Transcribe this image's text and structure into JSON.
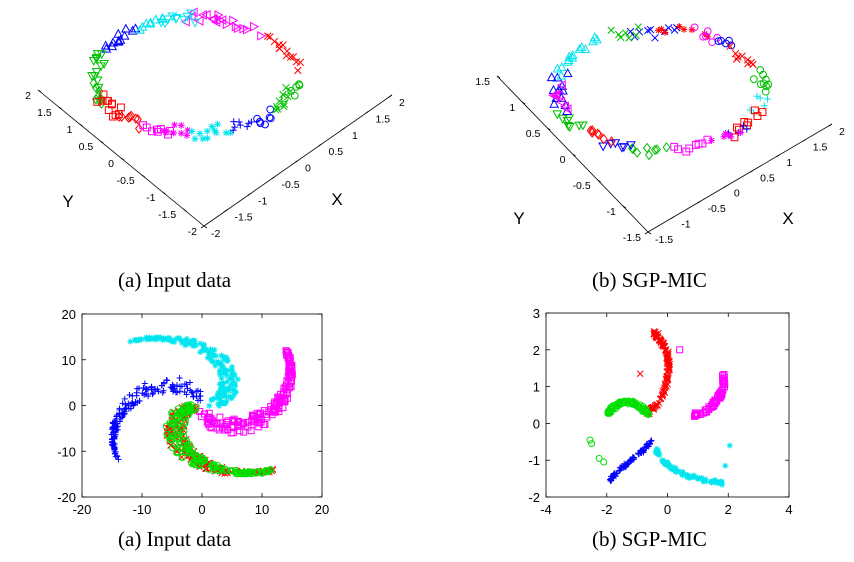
{
  "captions": {
    "top_left": "(a) Input data",
    "top_right": "(b) SGP-MIC",
    "bottom_left": "(a) Input data",
    "bottom_right": "(b) SGP-MIC"
  },
  "chart_data": [
    {
      "id": "ring3d-input",
      "type": "scatter",
      "dimensions": 3,
      "title": "",
      "xlabel": "X",
      "ylabel": "Y",
      "x_ticks": [
        "-2",
        "-1.5",
        "-1",
        "-0.5",
        "0",
        "0.5",
        "1",
        "1.5",
        "2"
      ],
      "y_ticks": [
        "-2",
        "-1.5",
        "-1",
        "-0.5",
        "0",
        "0.5",
        "1",
        "1.5",
        "2"
      ],
      "xlim": [
        -2,
        2
      ],
      "ylim": [
        -2,
        2
      ],
      "grid": false,
      "series": [
        {
          "marker": "triangle-up",
          "color": "#0000ff",
          "start_angle": 125,
          "end_angle": 155,
          "count": 12
        },
        {
          "marker": "triangle-down",
          "color": "#00c000",
          "start_angle": 155,
          "end_angle": 190,
          "count": 12
        },
        {
          "marker": "diamond",
          "color": "#00c000",
          "start_angle": 190,
          "end_angle": 210,
          "count": 8
        },
        {
          "marker": "square",
          "color": "#ff0000",
          "start_angle": 200,
          "end_angle": 225,
          "count": 12
        },
        {
          "marker": "diamond",
          "color": "#ff0000",
          "start_angle": 222,
          "end_angle": 238,
          "count": 8
        },
        {
          "marker": "square",
          "color": "#ff00ff",
          "start_angle": 238,
          "end_angle": 255,
          "count": 8
        },
        {
          "marker": "asterisk",
          "color": "#ff00ff",
          "start_angle": 250,
          "end_angle": 268,
          "count": 9
        },
        {
          "marker": "asterisk",
          "color": "#00e5ee",
          "start_angle": 268,
          "end_angle": 290,
          "count": 12
        },
        {
          "marker": "plus",
          "color": "#0000ff",
          "start_angle": 290,
          "end_angle": 305,
          "count": 8
        },
        {
          "marker": "circle",
          "color": "#0000ff",
          "start_angle": 305,
          "end_angle": 320,
          "count": 7
        },
        {
          "marker": "x",
          "color": "#00c000",
          "start_angle": 320,
          "end_angle": 345,
          "count": 10
        },
        {
          "marker": "circle",
          "color": "#00c000",
          "start_angle": 338,
          "end_angle": 352,
          "count": 6
        },
        {
          "marker": "x",
          "color": "#ff0000",
          "start_angle": 5,
          "end_angle": 45,
          "count": 14
        },
        {
          "marker": "triangle-right",
          "color": "#ff00ff",
          "start_angle": 50,
          "end_angle": 80,
          "count": 10
        },
        {
          "marker": "triangle-left",
          "color": "#ff00ff",
          "start_angle": 72,
          "end_angle": 95,
          "count": 10
        },
        {
          "marker": "triangle-down",
          "color": "#00e5ee",
          "start_angle": 90,
          "end_angle": 112,
          "count": 10
        },
        {
          "marker": "triangle-up",
          "color": "#00e5ee",
          "start_angle": 108,
          "end_angle": 125,
          "count": 8
        }
      ]
    },
    {
      "id": "ring3d-sgp-mic",
      "type": "scatter",
      "dimensions": 3,
      "title": "",
      "xlabel": "X",
      "ylabel": "Y",
      "x_ticks": [
        "-1.5",
        "-1",
        "-0.5",
        "0",
        "0.5",
        "1",
        "1.5",
        "2"
      ],
      "y_ticks": [
        "-1.5",
        "-1",
        "-0.5",
        "0",
        "0.5",
        "1",
        "1.5"
      ],
      "xlim": [
        -1.5,
        2
      ],
      "ylim": [
        -1.5,
        1.5
      ],
      "grid": false,
      "series": [
        {
          "marker": "x",
          "color": "#0000ff",
          "start_angle": 78,
          "end_angle": 108,
          "count": 10
        },
        {
          "marker": "x",
          "color": "#00c000",
          "start_angle": 100,
          "end_angle": 118,
          "count": 7
        },
        {
          "marker": "star",
          "color": "#ff0000",
          "start_angle": 60,
          "end_angle": 95,
          "count": 8
        },
        {
          "marker": "circle",
          "color": "#ff00ff",
          "start_angle": 55,
          "end_angle": 70,
          "count": 6
        },
        {
          "marker": "circle",
          "color": "#0000ff",
          "start_angle": 45,
          "end_angle": 58,
          "count": 5
        },
        {
          "marker": "x",
          "color": "#ff0000",
          "start_angle": 20,
          "end_angle": 45,
          "count": 9
        },
        {
          "marker": "circle",
          "color": "#00c000",
          "start_angle": 355,
          "end_angle": 20,
          "count": 9
        },
        {
          "marker": "plus",
          "color": "#00e5ee",
          "start_angle": 340,
          "end_angle": 358,
          "count": 6
        },
        {
          "marker": "square",
          "color": "#ff0000",
          "start_angle": 315,
          "end_angle": 340,
          "count": 9
        },
        {
          "marker": "plus",
          "color": "#0000ff",
          "start_angle": 310,
          "end_angle": 325,
          "count": 5
        },
        {
          "marker": "square",
          "color": "#ff00ff",
          "start_angle": 275,
          "end_angle": 300,
          "count": 8
        },
        {
          "marker": "asterisk",
          "color": "#ff00ff",
          "start_angle": 300,
          "end_angle": 320,
          "count": 6
        },
        {
          "marker": "diamond",
          "color": "#00c000",
          "start_angle": 250,
          "end_angle": 275,
          "count": 8
        },
        {
          "marker": "triangle-down",
          "color": "#0000ff",
          "start_angle": 238,
          "end_angle": 255,
          "count": 6
        },
        {
          "marker": "diamond",
          "color": "#ff0000",
          "start_angle": 222,
          "end_angle": 242,
          "count": 7
        },
        {
          "marker": "triangle-down",
          "color": "#00c000",
          "start_angle": 200,
          "end_angle": 222,
          "count": 8
        },
        {
          "marker": "triangle-up",
          "color": "#0000ff",
          "start_angle": 165,
          "end_angle": 200,
          "count": 12
        },
        {
          "marker": "triangle-left",
          "color": "#ff00ff",
          "start_angle": 175,
          "end_angle": 200,
          "count": 8
        },
        {
          "marker": "triangle-up",
          "color": "#00e5ee",
          "start_angle": 125,
          "end_angle": 165,
          "count": 14
        }
      ]
    },
    {
      "id": "spiral-input",
      "type": "scatter",
      "title": "",
      "xlabel": "",
      "ylabel": "",
      "xlim": [
        -20,
        20
      ],
      "ylim": [
        -20,
        20
      ],
      "x_ticks": [
        -20,
        -10,
        0,
        10,
        20
      ],
      "y_ticks": [
        -20,
        -10,
        0,
        10,
        20
      ],
      "grid": false,
      "series": [
        {
          "marker": "plus",
          "color": "#0000ff",
          "arm_angle": 100,
          "count": 160
        },
        {
          "marker": "asterisk",
          "color": "#00e5ee",
          "arm_angle": 10,
          "count": 160
        },
        {
          "marker": "square",
          "color": "#ff00ff",
          "arm_angle": -80,
          "count": 160
        },
        {
          "marker": "x",
          "color": "#ff0000",
          "arm_angle": -170,
          "count": 160
        },
        {
          "marker": "circle",
          "color": "#00e000",
          "arm_angle": 190,
          "count": 160
        }
      ]
    },
    {
      "id": "spiral-sgp-mic",
      "type": "scatter",
      "title": "",
      "xlabel": "",
      "ylabel": "",
      "xlim": [
        -4,
        4
      ],
      "ylim": [
        -2,
        3
      ],
      "x_ticks": [
        -4,
        -2,
        0,
        2,
        4
      ],
      "y_ticks": [
        -2,
        -1,
        0,
        1,
        2,
        3
      ],
      "grid": false,
      "series": [
        {
          "marker": "x",
          "color": "#ff0000",
          "polyline": [
            [
              -0.65,
              0.3
            ],
            [
              -0.3,
              0.55
            ],
            [
              -0.05,
              1.0
            ],
            [
              0.05,
              1.5
            ],
            [
              0.0,
              1.9
            ],
            [
              -0.2,
              2.2
            ],
            [
              -0.45,
              2.45
            ]
          ],
          "count": 110
        },
        {
          "marker": "circle",
          "color": "#00e000",
          "polyline": [
            [
              -0.6,
              0.25
            ],
            [
              -0.9,
              0.45
            ],
            [
              -1.2,
              0.58
            ],
            [
              -1.55,
              0.55
            ],
            [
              -1.85,
              0.4
            ],
            [
              -1.95,
              0.3
            ]
          ],
          "count": 90
        },
        {
          "marker": "plus",
          "color": "#0000ff",
          "polyline": [
            [
              -0.55,
              -0.5
            ],
            [
              -0.85,
              -0.75
            ],
            [
              -1.2,
              -1.0
            ],
            [
              -1.55,
              -1.25
            ],
            [
              -1.9,
              -1.55
            ]
          ],
          "count": 80
        },
        {
          "marker": "asterisk",
          "color": "#00e5ee",
          "polyline": [
            [
              -0.4,
              -0.7
            ],
            [
              -0.1,
              -1.05
            ],
            [
              0.3,
              -1.3
            ],
            [
              0.8,
              -1.45
            ],
            [
              1.3,
              -1.55
            ],
            [
              1.9,
              -1.65
            ]
          ],
          "count": 80
        },
        {
          "marker": "square",
          "color": "#ff00ff",
          "polyline": [
            [
              0.85,
              0.22
            ],
            [
              1.2,
              0.3
            ],
            [
              1.5,
              0.5
            ],
            [
              1.75,
              0.75
            ],
            [
              1.85,
              1.05
            ],
            [
              1.85,
              1.3
            ]
          ],
          "count": 70
        }
      ],
      "outliers": [
        {
          "marker": "x",
          "color": "#ff0000",
          "points": [
            [
              -0.3,
              2.45
            ],
            [
              -0.25,
              2.3
            ],
            [
              -0.9,
              1.35
            ]
          ]
        },
        {
          "marker": "circle",
          "color": "#00e000",
          "points": [
            [
              -2.5,
              -0.55
            ],
            [
              -2.55,
              -0.45
            ],
            [
              -2.25,
              -0.95
            ],
            [
              -2.1,
              -1.05
            ]
          ]
        },
        {
          "marker": "square",
          "color": "#ff00ff",
          "points": [
            [
              0.4,
              2.0
            ]
          ]
        },
        {
          "marker": "asterisk",
          "color": "#00e5ee",
          "points": [
            [
              2.05,
              -0.6
            ],
            [
              1.9,
              -1.15
            ]
          ]
        }
      ]
    }
  ]
}
